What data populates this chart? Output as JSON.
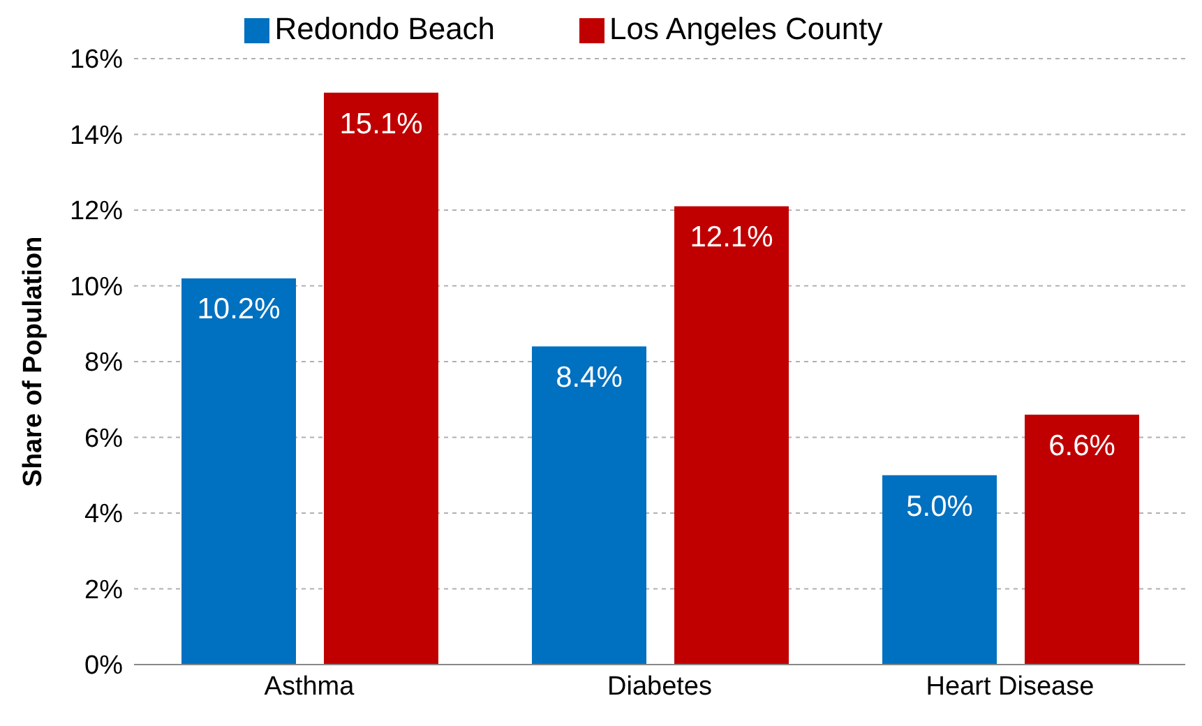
{
  "chart_data": {
    "type": "bar",
    "ylabel": "Share of Population",
    "categories": [
      "Asthma",
      "Diabetes",
      "Heart Disease"
    ],
    "series": [
      {
        "name": "Redondo Beach",
        "color": "#0070c0",
        "values": [
          10.2,
          8.4,
          5.0
        ],
        "value_labels": [
          "10.2%",
          "8.4%",
          "5.0%"
        ]
      },
      {
        "name": "Los Angeles County",
        "color": "#c00000",
        "values": [
          15.1,
          12.1,
          6.6
        ],
        "value_labels": [
          "15.1%",
          "12.1%",
          "6.6%"
        ]
      }
    ],
    "ylim": [
      0,
      16
    ],
    "yticks": [
      {
        "value": 0,
        "label": "0%"
      },
      {
        "value": 2,
        "label": "2%"
      },
      {
        "value": 4,
        "label": "4%"
      },
      {
        "value": 6,
        "label": "6%"
      },
      {
        "value": 8,
        "label": "8%"
      },
      {
        "value": 10,
        "label": "10%"
      },
      {
        "value": 12,
        "label": "12%"
      },
      {
        "value": 14,
        "label": "14%"
      },
      {
        "value": 16,
        "label": "16%"
      }
    ],
    "grid": "y",
    "legend": "top"
  }
}
